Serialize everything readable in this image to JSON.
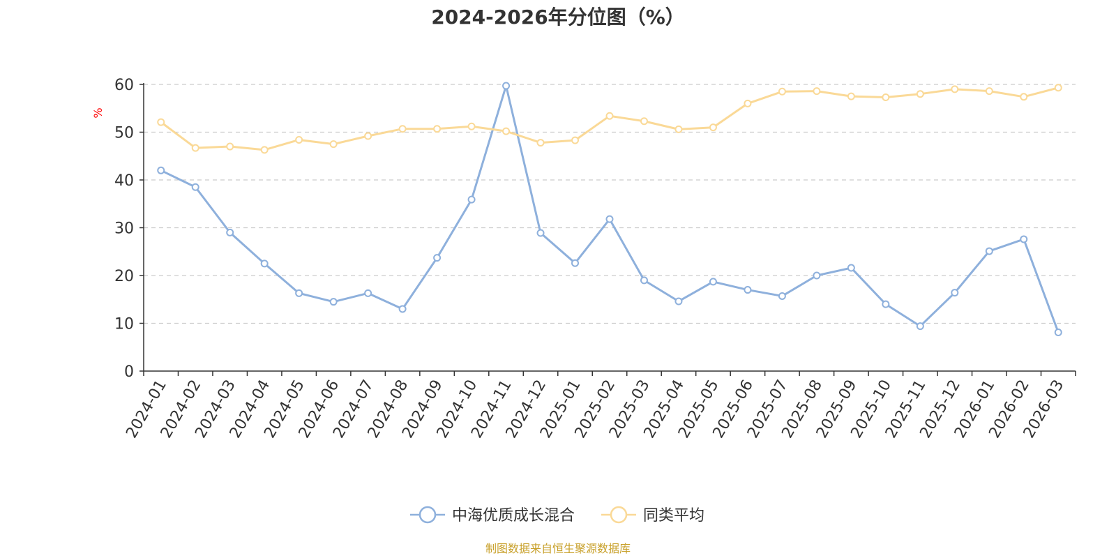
{
  "chart_data": {
    "type": "line",
    "title": "2024-2026年分位图（%）",
    "ylabel": "%",
    "xlabel": "",
    "ylim": [
      0,
      60
    ],
    "yticks": [
      0,
      10,
      20,
      30,
      40,
      50,
      60
    ],
    "grid": true,
    "legend_position": "bottom",
    "categories": [
      "2024-01",
      "2024-02",
      "2024-03",
      "2024-04",
      "2024-05",
      "2024-06",
      "2024-07",
      "2024-08",
      "2024-09",
      "2024-10",
      "2024-11",
      "2024-12",
      "2025-01",
      "2025-02",
      "2025-03",
      "2025-04",
      "2025-05",
      "2025-06",
      "2025-07",
      "2025-08",
      "2025-09",
      "2025-10",
      "2025-11",
      "2025-12",
      "2026-01",
      "2026-02",
      "2026-03"
    ],
    "series": [
      {
        "name": "中海优质成长混合",
        "color": "#8eb0dc",
        "values": [
          42.0,
          38.5,
          29.0,
          22.5,
          16.3,
          14.5,
          16.3,
          13.0,
          23.7,
          35.9,
          59.7,
          28.9,
          22.6,
          31.8,
          19.0,
          14.6,
          18.7,
          17.0,
          15.7,
          20.0,
          21.6,
          14.0,
          9.4,
          16.4,
          25.1,
          27.6,
          8.1
        ]
      },
      {
        "name": "同类平均",
        "color": "#fad997",
        "values": [
          52.1,
          46.7,
          47.0,
          46.3,
          48.4,
          47.5,
          49.2,
          50.7,
          50.7,
          51.2,
          50.2,
          47.8,
          48.3,
          53.4,
          52.3,
          50.6,
          51.0,
          56.0,
          58.5,
          58.6,
          57.5,
          57.3,
          58.0,
          59.0,
          58.6,
          57.4,
          59.3
        ]
      }
    ]
  },
  "footer": {
    "source": "制图数据来自恒生聚源数据库"
  }
}
